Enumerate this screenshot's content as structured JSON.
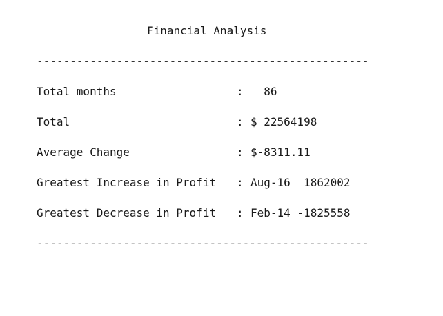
{
  "report": {
    "title": "Financial Analysis",
    "divider": "--------------------------------------------------",
    "rows": [
      {
        "label": "Total months",
        "separator": ":",
        "value": "  86"
      },
      {
        "label": "Total",
        "separator": ":",
        "value": "$ 22564198"
      },
      {
        "label": "Average Change",
        "separator": ":",
        "value": "$-8311.11"
      },
      {
        "label": "Greatest Increase in Profit",
        "separator": ":",
        "value": "Aug-16  1862002"
      },
      {
        "label": "Greatest Decrease in Profit",
        "separator": ":",
        "value": "Feb-14 -1825558"
      }
    ]
  }
}
